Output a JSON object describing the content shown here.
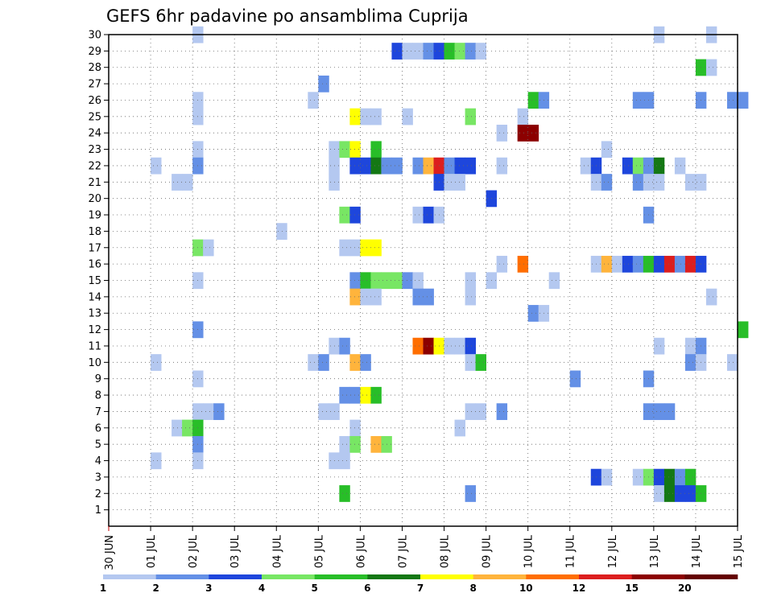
{
  "chart_data": {
    "type": "heatmap",
    "title": "GEFS 6hr padavine po ansamblima Cuprija",
    "xlabel": "",
    "ylabel": "",
    "x_tick_labels": [
      "30 JUN",
      "01 JUL",
      "02 JUL",
      "03 JUL",
      "04 JUL",
      "05 JUL",
      "06 JUL",
      "07 JUL",
      "08 JUL",
      "09 JUL",
      "10 JUL",
      "11 JUL",
      "12 JUL",
      "13 JUL",
      "14 JUL",
      "15 JUL"
    ],
    "xlim": [
      0,
      60
    ],
    "x_unit": "6-hour steps from 30 JUN 00Z",
    "y_ticks": [
      1,
      2,
      3,
      4,
      5,
      6,
      7,
      8,
      9,
      10,
      11,
      12,
      13,
      14,
      15,
      16,
      17,
      18,
      19,
      20,
      21,
      22,
      23,
      24,
      25,
      26,
      27,
      28,
      29,
      30
    ],
    "ylim": [
      0,
      30
    ],
    "grid": true,
    "legend_placement": "bottom",
    "colorbar": {
      "colors": [
        "#b4c8f0",
        "#6490e6",
        "#1e46dc",
        "#78e664",
        "#28be28",
        "#147814",
        "#ffff00",
        "#ffb43c",
        "#ff6e00",
        "#dc1e1e",
        "#8c0000",
        "#640000"
      ],
      "labels": [
        "1",
        "2",
        "3",
        "4",
        "5",
        "6",
        "7",
        "8",
        "10",
        "12",
        "15",
        "20"
      ],
      "label_positions": [
        0,
        1,
        2,
        3,
        4,
        5,
        6,
        7,
        8,
        9,
        10,
        11
      ]
    },
    "cells": [
      [
        8,
        30,
        1
      ],
      [
        52,
        30,
        1
      ],
      [
        57,
        30,
        1
      ],
      [
        27,
        29,
        3
      ],
      [
        28,
        29,
        1
      ],
      [
        29,
        29,
        1
      ],
      [
        30,
        29,
        2
      ],
      [
        31,
        29,
        3
      ],
      [
        32,
        29,
        5
      ],
      [
        33,
        29,
        4
      ],
      [
        34,
        29,
        2
      ],
      [
        35,
        29,
        1
      ],
      [
        56,
        28,
        5
      ],
      [
        57,
        28,
        1
      ],
      [
        20,
        27,
        2
      ],
      [
        8,
        26,
        1
      ],
      [
        19,
        26,
        1
      ],
      [
        40,
        26,
        5
      ],
      [
        41,
        26,
        2
      ],
      [
        50,
        26,
        2
      ],
      [
        51,
        26,
        2
      ],
      [
        56,
        26,
        2
      ],
      [
        59,
        26,
        2
      ],
      [
        60,
        26,
        2
      ],
      [
        8,
        25,
        1
      ],
      [
        23,
        25,
        7
      ],
      [
        24,
        25,
        1
      ],
      [
        25,
        25,
        1
      ],
      [
        28,
        25,
        1
      ],
      [
        34,
        25,
        4
      ],
      [
        39,
        25,
        1
      ],
      [
        37,
        24,
        1
      ],
      [
        39,
        24,
        11
      ],
      [
        40,
        24,
        11
      ],
      [
        8,
        23,
        1
      ],
      [
        21,
        23,
        1
      ],
      [
        22,
        23,
        4
      ],
      [
        23,
        23,
        7
      ],
      [
        25,
        23,
        5
      ],
      [
        47,
        23,
        1
      ],
      [
        4,
        22,
        1
      ],
      [
        8,
        22,
        2
      ],
      [
        21,
        22,
        1
      ],
      [
        23,
        22,
        3
      ],
      [
        24,
        22,
        3
      ],
      [
        25,
        22,
        6
      ],
      [
        26,
        22,
        2
      ],
      [
        27,
        22,
        2
      ],
      [
        29,
        22,
        2
      ],
      [
        30,
        22,
        8
      ],
      [
        31,
        22,
        10
      ],
      [
        32,
        22,
        2
      ],
      [
        33,
        22,
        3
      ],
      [
        34,
        22,
        3
      ],
      [
        37,
        22,
        1
      ],
      [
        45,
        22,
        1
      ],
      [
        46,
        22,
        3
      ],
      [
        49,
        22,
        3
      ],
      [
        50,
        22,
        4
      ],
      [
        51,
        22,
        2
      ],
      [
        52,
        22,
        6
      ],
      [
        54,
        22,
        1
      ],
      [
        6,
        21,
        1
      ],
      [
        7,
        21,
        1
      ],
      [
        21,
        21,
        1
      ],
      [
        31,
        21,
        3
      ],
      [
        32,
        21,
        1
      ],
      [
        33,
        21,
        1
      ],
      [
        46,
        21,
        1
      ],
      [
        47,
        21,
        2
      ],
      [
        50,
        21,
        2
      ],
      [
        51,
        21,
        1
      ],
      [
        52,
        21,
        1
      ],
      [
        55,
        21,
        1
      ],
      [
        56,
        21,
        1
      ],
      [
        36,
        20,
        3
      ],
      [
        22,
        19,
        4
      ],
      [
        23,
        19,
        3
      ],
      [
        29,
        19,
        1
      ],
      [
        30,
        19,
        3
      ],
      [
        31,
        19,
        1
      ],
      [
        51,
        19,
        2
      ],
      [
        16,
        18,
        1
      ],
      [
        8,
        17,
        4
      ],
      [
        9,
        17,
        1
      ],
      [
        22,
        17,
        1
      ],
      [
        23,
        17,
        1
      ],
      [
        24,
        17,
        7
      ],
      [
        25,
        17,
        7
      ],
      [
        37,
        16,
        1
      ],
      [
        39,
        16,
        9
      ],
      [
        46,
        16,
        1
      ],
      [
        47,
        16,
        8
      ],
      [
        48,
        16,
        1
      ],
      [
        49,
        16,
        3
      ],
      [
        50,
        16,
        2
      ],
      [
        51,
        16,
        5
      ],
      [
        52,
        16,
        3
      ],
      [
        53,
        16,
        10
      ],
      [
        54,
        16,
        2
      ],
      [
        55,
        16,
        10
      ],
      [
        56,
        16,
        3
      ],
      [
        8,
        15,
        1
      ],
      [
        23,
        15,
        2
      ],
      [
        24,
        15,
        5
      ],
      [
        25,
        15,
        4
      ],
      [
        26,
        15,
        4
      ],
      [
        27,
        15,
        4
      ],
      [
        28,
        15,
        2
      ],
      [
        29,
        15,
        1
      ],
      [
        34,
        15,
        1
      ],
      [
        36,
        15,
        1
      ],
      [
        42,
        15,
        1
      ],
      [
        23,
        14,
        8
      ],
      [
        24,
        14,
        1
      ],
      [
        25,
        14,
        1
      ],
      [
        29,
        14,
        2
      ],
      [
        30,
        14,
        2
      ],
      [
        34,
        14,
        1
      ],
      [
        57,
        14,
        1
      ],
      [
        40,
        13,
        2
      ],
      [
        41,
        13,
        1
      ],
      [
        8,
        12,
        2
      ],
      [
        60,
        12,
        5
      ],
      [
        21,
        11,
        1
      ],
      [
        22,
        11,
        2
      ],
      [
        29,
        11,
        9
      ],
      [
        30,
        11,
        11
      ],
      [
        31,
        11,
        7
      ],
      [
        32,
        11,
        1
      ],
      [
        33,
        11,
        1
      ],
      [
        34,
        11,
        3
      ],
      [
        52,
        11,
        1
      ],
      [
        55,
        11,
        1
      ],
      [
        56,
        11,
        2
      ],
      [
        4,
        10,
        1
      ],
      [
        19,
        10,
        1
      ],
      [
        20,
        10,
        2
      ],
      [
        23,
        10,
        8
      ],
      [
        24,
        10,
        2
      ],
      [
        34,
        10,
        1
      ],
      [
        35,
        10,
        5
      ],
      [
        55,
        10,
        2
      ],
      [
        56,
        10,
        1
      ],
      [
        59,
        10,
        1
      ],
      [
        8,
        9,
        1
      ],
      [
        44,
        9,
        2
      ],
      [
        51,
        9,
        2
      ],
      [
        22,
        8,
        2
      ],
      [
        23,
        8,
        2
      ],
      [
        24,
        8,
        7
      ],
      [
        25,
        8,
        5
      ],
      [
        8,
        7,
        1
      ],
      [
        9,
        7,
        1
      ],
      [
        10,
        7,
        2
      ],
      [
        20,
        7,
        1
      ],
      [
        21,
        7,
        1
      ],
      [
        34,
        7,
        1
      ],
      [
        35,
        7,
        1
      ],
      [
        37,
        7,
        2
      ],
      [
        51,
        7,
        2
      ],
      [
        52,
        7,
        2
      ],
      [
        53,
        7,
        2
      ],
      [
        6,
        6,
        1
      ],
      [
        7,
        6,
        4
      ],
      [
        8,
        6,
        5
      ],
      [
        23,
        6,
        1
      ],
      [
        33,
        6,
        1
      ],
      [
        8,
        5,
        2
      ],
      [
        22,
        5,
        1
      ],
      [
        23,
        5,
        4
      ],
      [
        25,
        5,
        8
      ],
      [
        26,
        5,
        4
      ],
      [
        4,
        4,
        1
      ],
      [
        8,
        4,
        1
      ],
      [
        21,
        4,
        1
      ],
      [
        22,
        4,
        1
      ],
      [
        46,
        3,
        3
      ],
      [
        47,
        3,
        1
      ],
      [
        50,
        3,
        1
      ],
      [
        51,
        3,
        4
      ],
      [
        52,
        3,
        3
      ],
      [
        53,
        3,
        6
      ],
      [
        54,
        3,
        2
      ],
      [
        55,
        3,
        5
      ],
      [
        22,
        2,
        5
      ],
      [
        34,
        2,
        2
      ],
      [
        52,
        2,
        1
      ],
      [
        53,
        2,
        6
      ],
      [
        54,
        2,
        3
      ],
      [
        55,
        2,
        3
      ],
      [
        56,
        2,
        5
      ]
    ]
  }
}
